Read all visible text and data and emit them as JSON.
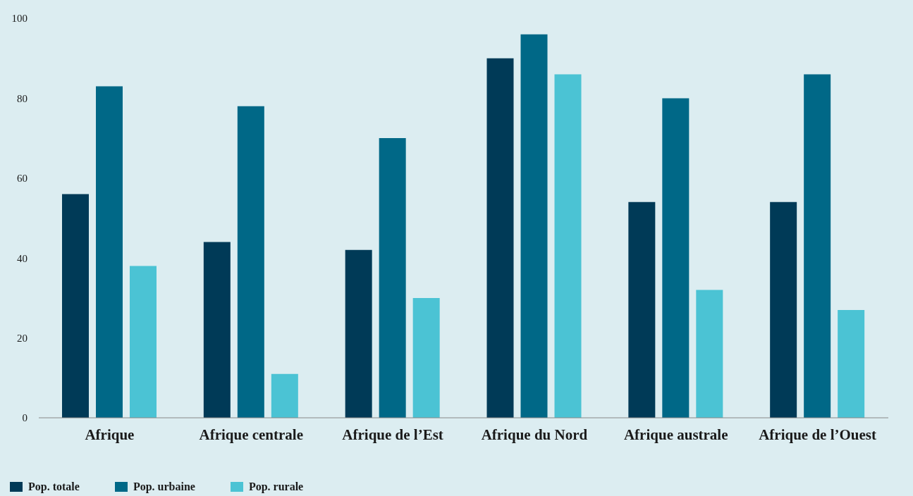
{
  "chart_data": {
    "type": "bar",
    "categories": [
      "Afrique",
      "Afrique centrale",
      "Afrique de l’Est",
      "Afrique du Nord",
      "Afrique australe",
      "Afrique de l’Ouest"
    ],
    "series": [
      {
        "name": "Pop. totale",
        "color": "#003a57",
        "values": [
          56,
          44,
          42,
          90,
          54,
          54
        ]
      },
      {
        "name": "Pop. urbaine",
        "color": "#006887",
        "values": [
          83,
          78,
          70,
          96,
          80,
          86
        ]
      },
      {
        "name": "Pop. rurale",
        "color": "#4bc3d4",
        "values": [
          38,
          11,
          30,
          86,
          32,
          27
        ]
      }
    ],
    "ylim": [
      0,
      100
    ],
    "yticks": [
      0,
      20,
      40,
      60,
      80,
      100
    ],
    "grid": false,
    "legend": "bottom left"
  }
}
